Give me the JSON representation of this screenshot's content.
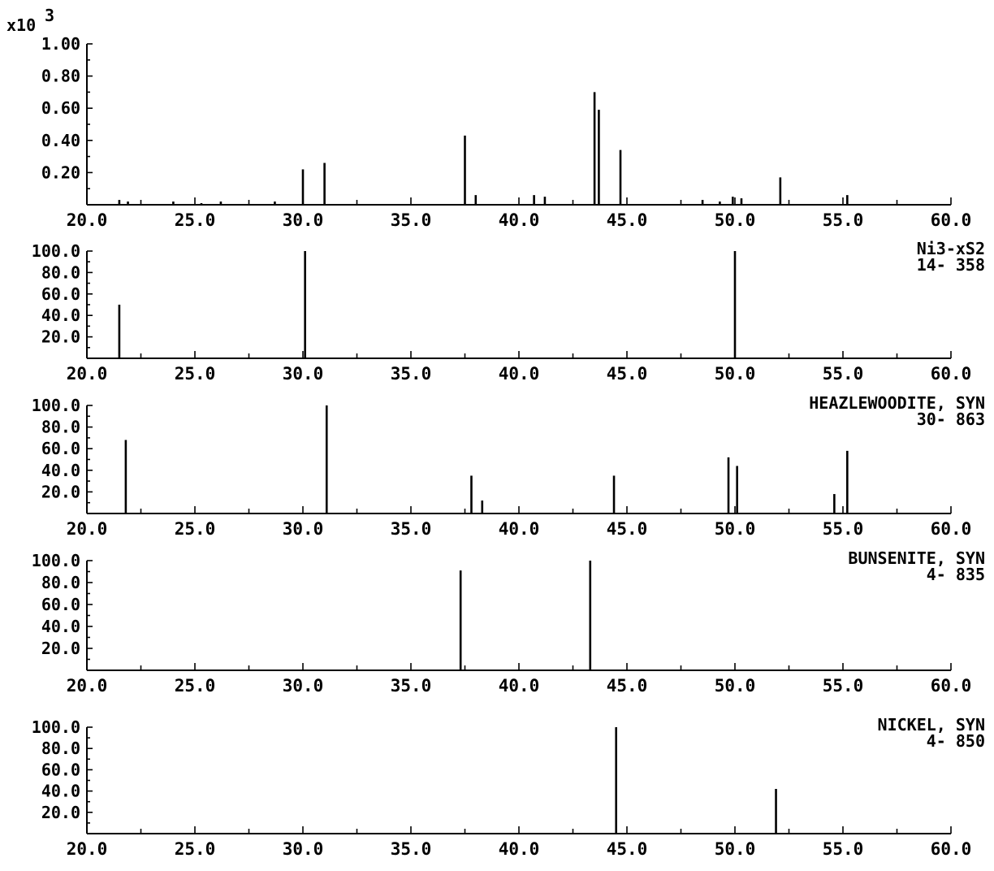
{
  "chart_data": [
    {
      "type": "bar",
      "panel": "measured",
      "multiplier_label": "x10",
      "multiplier_exponent": "3",
      "xlim": [
        20.0,
        60.0
      ],
      "ylim": [
        0,
        1.0
      ],
      "x_ticks": [
        "20.0",
        "25.0",
        "30.0",
        "35.0",
        "40.0",
        "45.0",
        "50.0",
        "55.0",
        "60.0"
      ],
      "y_ticks": [
        {
          "value": 0.2,
          "label": "0.20"
        },
        {
          "value": 0.4,
          "label": "0.40"
        },
        {
          "value": 0.6,
          "label": "0.60"
        },
        {
          "value": 0.8,
          "label": "0.80"
        },
        {
          "value": 1.0,
          "label": "1.00"
        }
      ],
      "peaks": [
        {
          "x": 21.5,
          "y": 0.03
        },
        {
          "x": 21.9,
          "y": 0.02
        },
        {
          "x": 24.0,
          "y": 0.02
        },
        {
          "x": 25.3,
          "y": 0.01
        },
        {
          "x": 26.2,
          "y": 0.02
        },
        {
          "x": 28.7,
          "y": 0.02
        },
        {
          "x": 30.0,
          "y": 0.22
        },
        {
          "x": 31.0,
          "y": 0.26
        },
        {
          "x": 37.5,
          "y": 0.43
        },
        {
          "x": 38.0,
          "y": 0.06
        },
        {
          "x": 40.7,
          "y": 0.06
        },
        {
          "x": 41.2,
          "y": 0.05
        },
        {
          "x": 43.5,
          "y": 0.7
        },
        {
          "x": 43.7,
          "y": 0.59
        },
        {
          "x": 44.7,
          "y": 0.34
        },
        {
          "x": 48.5,
          "y": 0.03
        },
        {
          "x": 49.3,
          "y": 0.02
        },
        {
          "x": 49.9,
          "y": 0.05
        },
        {
          "x": 50.3,
          "y": 0.04
        },
        {
          "x": 52.1,
          "y": 0.17
        },
        {
          "x": 55.2,
          "y": 0.06
        }
      ]
    },
    {
      "type": "bar",
      "phase": "Ni3-xS2",
      "card": "14- 358",
      "xlim": [
        20.0,
        60.0
      ],
      "ylim": [
        0,
        100.0
      ],
      "x_ticks": [
        "20.0",
        "25.0",
        "30.0",
        "35.0",
        "40.0",
        "45.0",
        "50.0",
        "55.0",
        "60.0"
      ],
      "y_ticks": [
        {
          "value": 20,
          "label": "20.0"
        },
        {
          "value": 40,
          "label": "40.0"
        },
        {
          "value": 60,
          "label": "60.0"
        },
        {
          "value": 80,
          "label": "80.0"
        },
        {
          "value": 100,
          "label": "100.0"
        }
      ],
      "peaks": [
        {
          "x": 21.5,
          "y": 50
        },
        {
          "x": 30.1,
          "y": 100
        },
        {
          "x": 50.0,
          "y": 100
        }
      ]
    },
    {
      "type": "bar",
      "phase": "HEAZLEWOODITE, SYN",
      "card": "30- 863",
      "xlim": [
        20.0,
        60.0
      ],
      "ylim": [
        0,
        100.0
      ],
      "x_ticks": [
        "20.0",
        "25.0",
        "30.0",
        "35.0",
        "40.0",
        "45.0",
        "50.0",
        "55.0",
        "60.0"
      ],
      "y_ticks": [
        {
          "value": 20,
          "label": "20.0"
        },
        {
          "value": 40,
          "label": "40.0"
        },
        {
          "value": 60,
          "label": "60.0"
        },
        {
          "value": 80,
          "label": "80.0"
        },
        {
          "value": 100,
          "label": "100.0"
        }
      ],
      "peaks": [
        {
          "x": 21.8,
          "y": 68
        },
        {
          "x": 31.1,
          "y": 100
        },
        {
          "x": 37.8,
          "y": 35
        },
        {
          "x": 38.3,
          "y": 12
        },
        {
          "x": 44.4,
          "y": 35
        },
        {
          "x": 49.7,
          "y": 52
        },
        {
          "x": 50.1,
          "y": 44
        },
        {
          "x": 54.6,
          "y": 18
        },
        {
          "x": 55.2,
          "y": 58
        }
      ]
    },
    {
      "type": "bar",
      "phase": "BUNSENITE, SYN",
      "card": "4- 835",
      "xlim": [
        20.0,
        60.0
      ],
      "ylim": [
        0,
        100.0
      ],
      "x_ticks": [
        "20.0",
        "25.0",
        "30.0",
        "35.0",
        "40.0",
        "45.0",
        "50.0",
        "55.0",
        "60.0"
      ],
      "y_ticks": [
        {
          "value": 20,
          "label": "20.0"
        },
        {
          "value": 40,
          "label": "40.0"
        },
        {
          "value": 60,
          "label": "60.0"
        },
        {
          "value": 80,
          "label": "80.0"
        },
        {
          "value": 100,
          "label": "100.0"
        }
      ],
      "peaks": [
        {
          "x": 37.3,
          "y": 91
        },
        {
          "x": 43.3,
          "y": 100
        }
      ]
    },
    {
      "type": "bar",
      "phase": "NICKEL, SYN",
      "card": "4- 850",
      "xlim": [
        20.0,
        60.0
      ],
      "ylim": [
        0,
        100.0
      ],
      "x_ticks": [
        "20.0",
        "25.0",
        "30.0",
        "35.0",
        "40.0",
        "45.0",
        "50.0",
        "55.0",
        "60.0"
      ],
      "y_ticks": [
        {
          "value": 20,
          "label": "20.0"
        },
        {
          "value": 40,
          "label": "40.0"
        },
        {
          "value": 60,
          "label": "60.0"
        },
        {
          "value": 80,
          "label": "80.0"
        },
        {
          "value": 100,
          "label": "100.0"
        }
      ],
      "peaks": [
        {
          "x": 44.5,
          "y": 100
        },
        {
          "x": 51.9,
          "y": 42
        }
      ]
    }
  ]
}
